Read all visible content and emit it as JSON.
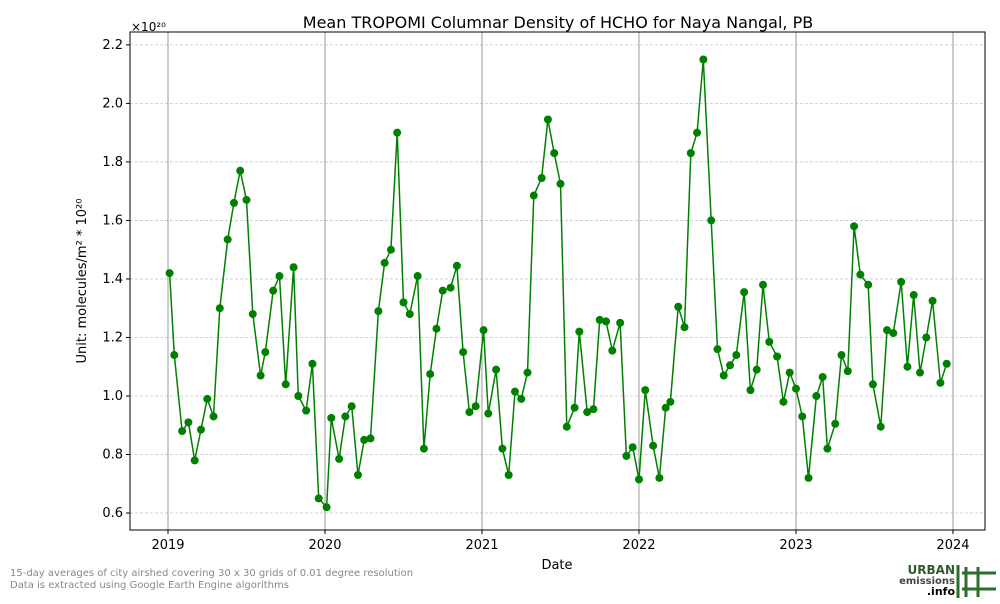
{
  "chart_data": {
    "type": "line",
    "title": "Mean TROPOMI Columnar Density of HCHO for Naya Nangal, PB",
    "x_label": "Date",
    "y_label": "Unit: molecules/m² * 10²⁰",
    "y_offset_label": "×10²⁰",
    "footnotes": [
      "15-day averages of city airshed covering 30 x 30 grids of 0.01 degree resolution",
      "Data is extracted using Google Earth Engine algorithms"
    ],
    "logo": [
      "URBAN",
      "emissions",
      ".info"
    ],
    "grid": true,
    "xlim": [
      2018.758,
      2024.204
    ],
    "xticks": [
      2019,
      2020,
      2021,
      2022,
      2023,
      2024
    ],
    "ylim": [
      0.542,
      2.244
    ],
    "yticks": [
      0.6,
      0.8,
      {
        "value": 1,
        "label": "1.0"
      },
      1.2,
      1.4,
      1.6,
      1.8,
      {
        "value": 2,
        "label": "2.0"
      },
      2.2
    ],
    "x": [
      2019.01,
      2019.04,
      2019.09,
      2019.13,
      2019.17,
      2019.21,
      2019.25,
      2019.29,
      2019.33,
      2019.38,
      2019.42,
      2019.46,
      2019.5,
      2019.54,
      2019.59,
      2019.62,
      2019.67,
      2019.71,
      2019.75,
      2019.8,
      2019.83,
      2019.88,
      2019.92,
      2019.96,
      2020.01,
      2020.04,
      2020.09,
      2020.13,
      2020.17,
      2020.21,
      2020.25,
      2020.29,
      2020.34,
      2020.38,
      2020.42,
      2020.46,
      2020.5,
      2020.54,
      2020.59,
      2020.63,
      2020.67,
      2020.71,
      2020.75,
      2020.8,
      2020.84,
      2020.88,
      2020.92,
      2020.96,
      2021.01,
      2021.04,
      2021.09,
      2021.13,
      2021.17,
      2021.21,
      2021.25,
      2021.29,
      2021.33,
      2021.38,
      2021.42,
      2021.46,
      2021.5,
      2021.54,
      2021.59,
      2021.62,
      2021.67,
      2021.71,
      2021.75,
      2021.79,
      2021.83,
      2021.88,
      2021.92,
      2021.96,
      2022.0,
      2022.04,
      2022.09,
      2022.13,
      2022.17,
      2022.2,
      2022.25,
      2022.29,
      2022.33,
      2022.37,
      2022.41,
      2022.46,
      2022.5,
      2022.54,
      2022.58,
      2022.62,
      2022.67,
      2022.71,
      2022.75,
      2022.79,
      2022.83,
      2022.88,
      2022.92,
      2022.96,
      2023.0,
      2023.04,
      2023.08,
      2023.13,
      2023.17,
      2023.2,
      2023.25,
      2023.29,
      2023.33,
      2023.37,
      2023.41,
      2023.46,
      2023.49,
      2023.54,
      2023.58,
      2023.62,
      2023.67,
      2023.71,
      2023.75,
      2023.79,
      2023.83,
      2023.87,
      2023.92,
      2023.96
    ],
    "series": [
      {
        "name": "HCHO",
        "color": "#008000",
        "values": [
          1.42,
          1.14,
          0.88,
          0.91,
          0.78,
          0.885,
          0.99,
          0.93,
          1.3,
          1.535,
          1.66,
          1.77,
          1.67,
          1.28,
          1.07,
          1.15,
          1.36,
          1.41,
          1.04,
          1.44,
          1.0,
          0.95,
          1.11,
          0.65,
          0.62,
          0.925,
          0.785,
          0.93,
          0.965,
          0.73,
          0.85,
          0.855,
          1.29,
          1.455,
          1.5,
          1.9,
          1.32,
          1.28,
          1.41,
          0.82,
          1.075,
          1.23,
          1.36,
          1.37,
          1.445,
          1.15,
          0.945,
          0.965,
          1.225,
          0.94,
          1.09,
          0.82,
          0.73,
          1.015,
          0.99,
          1.08,
          1.685,
          1.745,
          1.945,
          1.83,
          1.725,
          0.895,
          0.96,
          1.22,
          0.945,
          0.955,
          1.26,
          1.255,
          1.155,
          1.25,
          0.795,
          0.825,
          0.715,
          1.02,
          0.83,
          0.72,
          0.96,
          0.98,
          1.305,
          1.235,
          1.83,
          1.9,
          2.15,
          1.6,
          1.16,
          1.07,
          1.105,
          1.14,
          1.355,
          1.02,
          1.09,
          1.38,
          1.185,
          1.135,
          0.98,
          1.08,
          1.025,
          0.93,
          0.72,
          1.0,
          1.065,
          0.82,
          0.905,
          1.14,
          1.085,
          1.58,
          1.415,
          1.38,
          1.04,
          0.895,
          1.225,
          1.215,
          1.39,
          1.1,
          1.345,
          1.08,
          1.2,
          1.325,
          1.045,
          1.11
        ]
      }
    ]
  }
}
